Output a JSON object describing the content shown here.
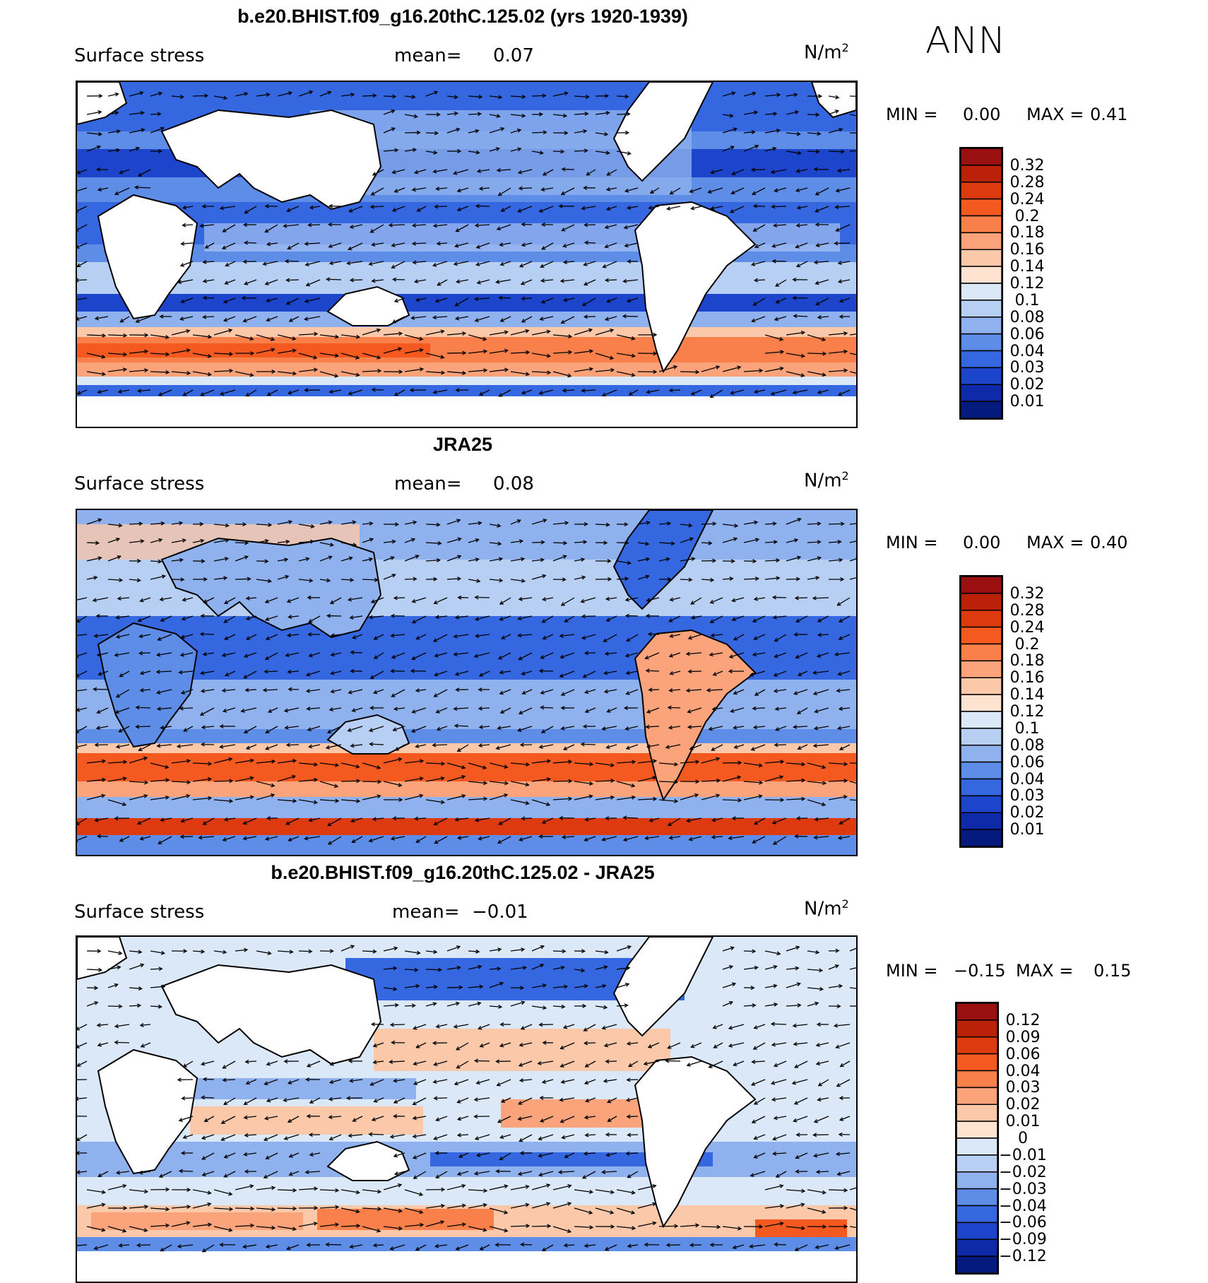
{
  "season": "ANN",
  "panels": [
    {
      "title": "b.e20.BHIST.f09_g16.20thC.125.02 (yrs 1920-1939)",
      "variable": "Surface stress",
      "mean_label": "mean=",
      "mean_value": "0.07",
      "units": "N/m",
      "units_exp": "2",
      "min_label": "MIN =",
      "min_value": "0.00",
      "max_label": "MAX =",
      "max_value": "0.41",
      "colorbar": {
        "labels": [
          "0.32",
          "0.28",
          "0.24",
          "0.2",
          "0.18",
          "0.16",
          "0.14",
          "0.12",
          "0.1",
          "0.08",
          "0.06",
          "0.04",
          "0.03",
          "0.02",
          "0.01"
        ],
        "colors": [
          "#9a1010",
          "#bb2108",
          "#dd3a10",
          "#f45a20",
          "#f9804a",
          "#fba47c",
          "#fcc8aa",
          "#fde3d0",
          "#dbe8f8",
          "#b8cff4",
          "#8fb2ee",
          "#5d8de6",
          "#3568e0",
          "#1c45cc",
          "#0e2aa8",
          "#041a7c"
        ]
      }
    },
    {
      "title": "JRA25",
      "variable": "Surface stress",
      "mean_label": "mean=",
      "mean_value": "0.08",
      "units": "N/m",
      "units_exp": "2",
      "min_label": "MIN =",
      "min_value": "0.00",
      "max_label": "MAX =",
      "max_value": "0.40",
      "colorbar": {
        "labels": [
          "0.32",
          "0.28",
          "0.24",
          "0.2",
          "0.18",
          "0.16",
          "0.14",
          "0.12",
          "0.1",
          "0.08",
          "0.06",
          "0.04",
          "0.03",
          "0.02",
          "0.01"
        ],
        "colors": [
          "#9a1010",
          "#bb2108",
          "#dd3a10",
          "#f45a20",
          "#f9804a",
          "#fba47c",
          "#fcc8aa",
          "#fde3d0",
          "#dbe8f8",
          "#b8cff4",
          "#8fb2ee",
          "#5d8de6",
          "#3568e0",
          "#1c45cc",
          "#0e2aa8",
          "#041a7c"
        ]
      }
    },
    {
      "title": "b.e20.BHIST.f09_g16.20thC.125.02 - JRA25",
      "variable": "Surface stress",
      "mean_label": "mean=",
      "mean_value": "−0.01",
      "units": "N/m",
      "units_exp": "2",
      "min_label": "MIN =",
      "min_value": "−0.15",
      "max_label": "MAX =",
      "max_value": "0.15",
      "colorbar": {
        "labels": [
          "0.12",
          "0.09",
          "0.06",
          "0.04",
          "0.03",
          "0.02",
          "0.01",
          "0",
          "−0.01",
          "−0.02",
          "−0.03",
          "−0.04",
          "−0.06",
          "−0.09",
          "−0.12"
        ],
        "colors": [
          "#9a1010",
          "#bb2108",
          "#dd3a10",
          "#f45a20",
          "#f9804a",
          "#fba47c",
          "#fcc8aa",
          "#fde3d0",
          "#dbe8f8",
          "#b8cff4",
          "#8fb2ee",
          "#5d8de6",
          "#3568e0",
          "#1c45cc",
          "#0e2aa8",
          "#041a7c"
        ]
      }
    }
  ]
}
